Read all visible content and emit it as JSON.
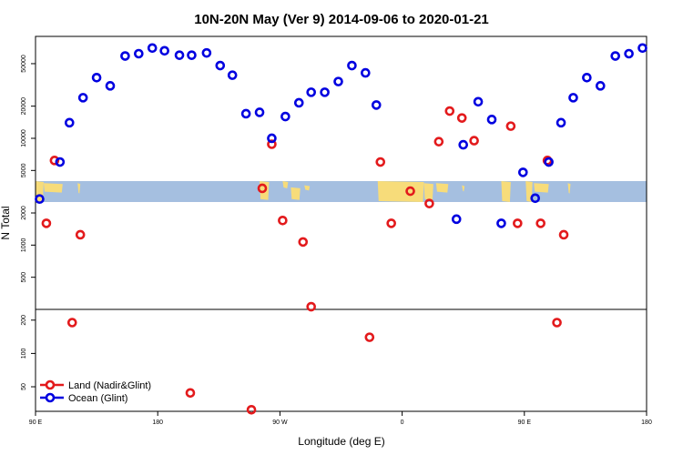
{
  "chart_data": {
    "type": "scatter",
    "title": "10N-20N May (Ver 9)   2014-09-06 to 2020-01-21",
    "xlabel": "Longitude (deg E)",
    "ylabel": "N Total",
    "x_ticks": [
      {
        "value": 90,
        "label": "90 E"
      },
      {
        "value": 180,
        "label": "180"
      },
      {
        "value": 270,
        "label": "90 W"
      },
      {
        "value": 360,
        "label": "0"
      },
      {
        "value": 450,
        "label": "90 E"
      },
      {
        "value": 540,
        "label": "180"
      }
    ],
    "xlim": [
      90,
      540
    ],
    "y_scale": "log",
    "upper_panel": {
      "ylim": [
        250,
        90000
      ],
      "y_ticks": [
        {
          "value": 500,
          "label": "500"
        },
        {
          "value": 1000,
          "label": "1000"
        },
        {
          "value": 2000,
          "label": "2000"
        },
        {
          "value": 5000,
          "label": "5000"
        },
        {
          "value": 10000,
          "label": "10000"
        },
        {
          "value": 20000,
          "label": "20000"
        },
        {
          "value": 50000,
          "label": "50000"
        }
      ]
    },
    "lower_panel": {
      "ylim": [
        30,
        250
      ],
      "y_ticks": [
        {
          "value": 50,
          "label": "50"
        },
        {
          "value": 100,
          "label": "100"
        },
        {
          "value": 200,
          "label": "200"
        }
      ]
    },
    "map_band": {
      "ocean_color": "#a5bfe0",
      "land_color": "#f7dc7a"
    },
    "legend_position": "bottom-left",
    "series": [
      {
        "name": "Land (Nadir&Glint)",
        "color": "#e31a1c",
        "points": [
          {
            "x": 98,
            "y": 1600
          },
          {
            "x": 104,
            "y": 6200
          },
          {
            "x": 117,
            "y": 190
          },
          {
            "x": 123,
            "y": 1250
          },
          {
            "x": 204,
            "y": 44
          },
          {
            "x": 249,
            "y": 31
          },
          {
            "x": 257,
            "y": 3400
          },
          {
            "x": 264,
            "y": 8800
          },
          {
            "x": 272,
            "y": 1700
          },
          {
            "x": 287,
            "y": 1070
          },
          {
            "x": 293,
            "y": 265
          },
          {
            "x": 336,
            "y": 140
          },
          {
            "x": 344,
            "y": 6000
          },
          {
            "x": 352,
            "y": 1600
          },
          {
            "x": 366,
            "y": 3200
          },
          {
            "x": 380,
            "y": 2450
          },
          {
            "x": 387,
            "y": 9300
          },
          {
            "x": 395,
            "y": 18000
          },
          {
            "x": 404,
            "y": 15500
          },
          {
            "x": 413,
            "y": 9500
          },
          {
            "x": 440,
            "y": 13000
          },
          {
            "x": 445,
            "y": 1600
          },
          {
            "x": 462,
            "y": 1600
          },
          {
            "x": 467,
            "y": 6200
          },
          {
            "x": 474,
            "y": 190
          },
          {
            "x": 479,
            "y": 1250
          }
        ]
      },
      {
        "name": "Ocean (Glint)",
        "color": "#0000e0",
        "points": [
          {
            "x": 93,
            "y": 2700
          },
          {
            "x": 108,
            "y": 6000
          },
          {
            "x": 115,
            "y": 14000
          },
          {
            "x": 125,
            "y": 24000
          },
          {
            "x": 135,
            "y": 37000
          },
          {
            "x": 145,
            "y": 31000
          },
          {
            "x": 156,
            "y": 59000
          },
          {
            "x": 166,
            "y": 62000
          },
          {
            "x": 176,
            "y": 70000
          },
          {
            "x": 185,
            "y": 66000
          },
          {
            "x": 196,
            "y": 60000
          },
          {
            "x": 205,
            "y": 60000
          },
          {
            "x": 216,
            "y": 63000
          },
          {
            "x": 226,
            "y": 48000
          },
          {
            "x": 235,
            "y": 39000
          },
          {
            "x": 245,
            "y": 17000
          },
          {
            "x": 255,
            "y": 17500
          },
          {
            "x": 264,
            "y": 10000
          },
          {
            "x": 274,
            "y": 16000
          },
          {
            "x": 284,
            "y": 21500
          },
          {
            "x": 293,
            "y": 27000
          },
          {
            "x": 303,
            "y": 27000
          },
          {
            "x": 313,
            "y": 34000
          },
          {
            "x": 323,
            "y": 48000
          },
          {
            "x": 333,
            "y": 41000
          },
          {
            "x": 341,
            "y": 20500
          },
          {
            "x": 400,
            "y": 1750
          },
          {
            "x": 405,
            "y": 8700
          },
          {
            "x": 416,
            "y": 22000
          },
          {
            "x": 426,
            "y": 15000
          },
          {
            "x": 433,
            "y": 1600
          },
          {
            "x": 449,
            "y": 4800
          },
          {
            "x": 458,
            "y": 2750
          },
          {
            "x": 468,
            "y": 6000
          },
          {
            "x": 477,
            "y": 14000
          },
          {
            "x": 486,
            "y": 24000
          },
          {
            "x": 496,
            "y": 37000
          },
          {
            "x": 506,
            "y": 31000
          },
          {
            "x": 517,
            "y": 59000
          },
          {
            "x": 527,
            "y": 62000
          },
          {
            "x": 537,
            "y": 70000
          }
        ]
      }
    ]
  }
}
